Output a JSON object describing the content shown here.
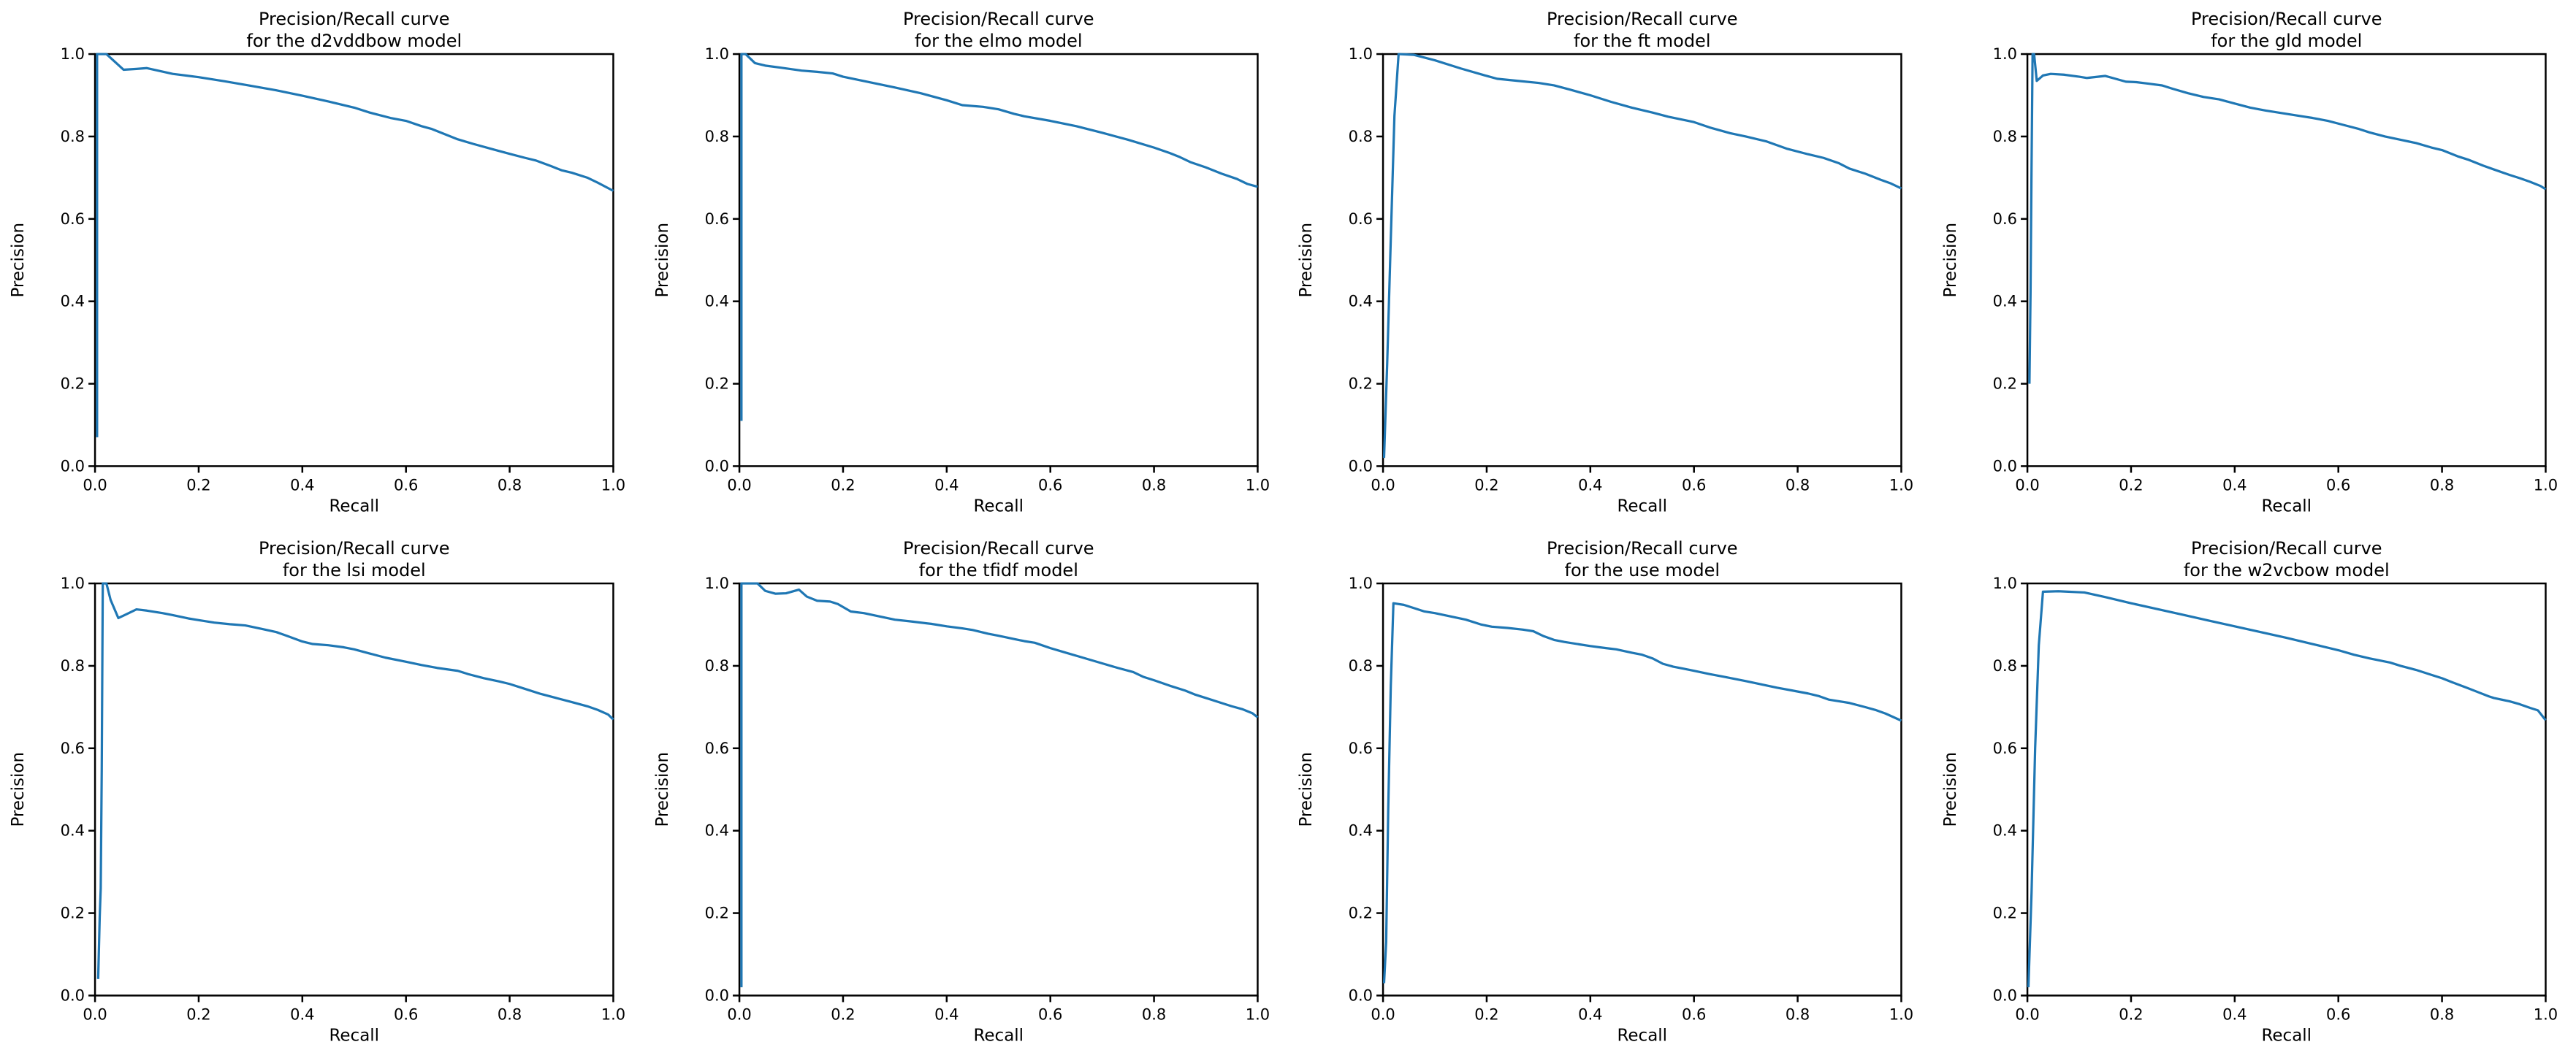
{
  "figure": {
    "background": "#ffffff",
    "line_color": "#1f77b4",
    "axis_color": "#000000",
    "nrows": 2,
    "ncols": 4
  },
  "chart_data": [
    {
      "type": "line",
      "model": "d2vddbow",
      "title_line1": "Precision/Recall curve",
      "title_line2": "for the d2vddbow model",
      "xlabel": "Recall",
      "ylabel": "Precision",
      "xlim": [
        0.0,
        1.0
      ],
      "ylim": [
        0.0,
        1.0
      ],
      "xticks": [
        0.0,
        0.2,
        0.4,
        0.6,
        0.8,
        1.0
      ],
      "yticks": [
        0.0,
        0.2,
        0.4,
        0.6,
        0.8,
        1.0
      ],
      "xtick_labels": [
        "0.0",
        "0.2",
        "0.4",
        "0.6",
        "0.8",
        "1.0"
      ],
      "ytick_labels": [
        "0.0",
        "0.2",
        "0.4",
        "0.6",
        "0.8",
        "1.0"
      ],
      "grid": false,
      "legend": "none",
      "series": [
        {
          "name": "precision_recall",
          "x": [
            0.004,
            0.004,
            0.01,
            0.022,
            0.055,
            0.08,
            0.1,
            0.15,
            0.2,
            0.25,
            0.3,
            0.35,
            0.4,
            0.45,
            0.5,
            0.53,
            0.57,
            0.6,
            0.63,
            0.65,
            0.7,
            0.73,
            0.77,
            0.8,
            0.83,
            0.85,
            0.88,
            0.9,
            0.92,
            0.95,
            0.97,
            1.0
          ],
          "y": [
            0.07,
            1.0,
            1.0,
            1.0,
            0.962,
            0.964,
            0.966,
            0.952,
            0.944,
            0.934,
            0.923,
            0.912,
            0.899,
            0.885,
            0.87,
            0.858,
            0.845,
            0.838,
            0.825,
            0.818,
            0.793,
            0.782,
            0.768,
            0.758,
            0.748,
            0.742,
            0.728,
            0.718,
            0.712,
            0.7,
            0.688,
            0.668
          ]
        }
      ]
    },
    {
      "type": "line",
      "model": "elmo",
      "title_line1": "Precision/Recall curve",
      "title_line2": "for the elmo model",
      "xlabel": "Recall",
      "ylabel": "Precision",
      "xlim": [
        0.0,
        1.0
      ],
      "ylim": [
        0.0,
        1.0
      ],
      "xticks": [
        0.0,
        0.2,
        0.4,
        0.6,
        0.8,
        1.0
      ],
      "yticks": [
        0.0,
        0.2,
        0.4,
        0.6,
        0.8,
        1.0
      ],
      "xtick_labels": [
        "0.0",
        "0.2",
        "0.4",
        "0.6",
        "0.8",
        "1.0"
      ],
      "ytick_labels": [
        "0.0",
        "0.2",
        "0.4",
        "0.6",
        "0.8",
        "1.0"
      ],
      "grid": false,
      "legend": "none",
      "series": [
        {
          "name": "precision_recall",
          "x": [
            0.004,
            0.004,
            0.012,
            0.03,
            0.05,
            0.08,
            0.12,
            0.15,
            0.18,
            0.2,
            0.25,
            0.3,
            0.35,
            0.4,
            0.43,
            0.47,
            0.5,
            0.53,
            0.55,
            0.6,
            0.65,
            0.7,
            0.75,
            0.8,
            0.83,
            0.85,
            0.87,
            0.9,
            0.93,
            0.96,
            0.98,
            1.0
          ],
          "y": [
            0.11,
            1.0,
            1.0,
            0.978,
            0.972,
            0.967,
            0.96,
            0.957,
            0.953,
            0.945,
            0.932,
            0.919,
            0.905,
            0.888,
            0.876,
            0.872,
            0.866,
            0.855,
            0.849,
            0.838,
            0.825,
            0.809,
            0.792,
            0.773,
            0.76,
            0.75,
            0.738,
            0.725,
            0.71,
            0.697,
            0.685,
            0.678
          ]
        }
      ]
    },
    {
      "type": "line",
      "model": "ft",
      "title_line1": "Precision/Recall curve",
      "title_line2": "for the ft model",
      "xlabel": "Recall",
      "ylabel": "Precision",
      "xlim": [
        0.0,
        1.0
      ],
      "ylim": [
        0.0,
        1.0
      ],
      "xticks": [
        0.0,
        0.2,
        0.4,
        0.6,
        0.8,
        1.0
      ],
      "yticks": [
        0.0,
        0.2,
        0.4,
        0.6,
        0.8,
        1.0
      ],
      "xtick_labels": [
        "0.0",
        "0.2",
        "0.4",
        "0.6",
        "0.8",
        "1.0"
      ],
      "ytick_labels": [
        "0.0",
        "0.2",
        "0.4",
        "0.6",
        "0.8",
        "1.0"
      ],
      "grid": false,
      "legend": "none",
      "series": [
        {
          "name": "precision_recall",
          "x": [
            0.002,
            0.008,
            0.015,
            0.022,
            0.03,
            0.06,
            0.1,
            0.15,
            0.2,
            0.22,
            0.26,
            0.3,
            0.33,
            0.36,
            0.4,
            0.44,
            0.48,
            0.52,
            0.55,
            0.6,
            0.63,
            0.67,
            0.7,
            0.74,
            0.78,
            0.82,
            0.85,
            0.88,
            0.9,
            0.93,
            0.96,
            0.98,
            1.0
          ],
          "y": [
            0.02,
            0.25,
            0.55,
            0.85,
            1.0,
            0.998,
            0.985,
            0.965,
            0.947,
            0.94,
            0.935,
            0.93,
            0.924,
            0.914,
            0.9,
            0.884,
            0.87,
            0.858,
            0.848,
            0.835,
            0.822,
            0.808,
            0.8,
            0.788,
            0.77,
            0.757,
            0.748,
            0.735,
            0.722,
            0.71,
            0.695,
            0.686,
            0.674
          ]
        }
      ]
    },
    {
      "type": "line",
      "model": "gld",
      "title_line1": "Precision/Recall curve",
      "title_line2": "for the gld model",
      "xlabel": "Recall",
      "ylabel": "Precision",
      "xlim": [
        0.0,
        1.0
      ],
      "ylim": [
        0.0,
        1.0
      ],
      "xticks": [
        0.0,
        0.2,
        0.4,
        0.6,
        0.8,
        1.0
      ],
      "yticks": [
        0.0,
        0.2,
        0.4,
        0.6,
        0.8,
        1.0
      ],
      "xtick_labels": [
        "0.0",
        "0.2",
        "0.4",
        "0.6",
        "0.8",
        "1.0"
      ],
      "ytick_labels": [
        "0.0",
        "0.2",
        "0.4",
        "0.6",
        "0.8",
        "1.0"
      ],
      "grid": false,
      "legend": "none",
      "series": [
        {
          "name": "precision_recall",
          "x": [
            0.004,
            0.006,
            0.008,
            0.01,
            0.013,
            0.018,
            0.03,
            0.045,
            0.07,
            0.1,
            0.115,
            0.15,
            0.17,
            0.19,
            0.21,
            0.235,
            0.26,
            0.28,
            0.31,
            0.34,
            0.37,
            0.4,
            0.43,
            0.46,
            0.5,
            0.53,
            0.55,
            0.58,
            0.61,
            0.64,
            0.66,
            0.69,
            0.72,
            0.75,
            0.78,
            0.8,
            0.83,
            0.85,
            0.88,
            0.9,
            0.93,
            0.95,
            0.97,
            0.99,
            1.0
          ],
          "y": [
            0.2,
            0.42,
            0.73,
            1.0,
            1.0,
            0.935,
            0.948,
            0.952,
            0.95,
            0.945,
            0.942,
            0.947,
            0.94,
            0.933,
            0.932,
            0.928,
            0.924,
            0.916,
            0.905,
            0.896,
            0.89,
            0.88,
            0.87,
            0.863,
            0.855,
            0.849,
            0.845,
            0.838,
            0.828,
            0.818,
            0.81,
            0.8,
            0.792,
            0.784,
            0.773,
            0.767,
            0.752,
            0.744,
            0.729,
            0.72,
            0.707,
            0.699,
            0.69,
            0.68,
            0.672
          ]
        }
      ]
    },
    {
      "type": "line",
      "model": "lsi",
      "title_line1": "Precision/Recall curve",
      "title_line2": "for the lsi model",
      "xlabel": "Recall",
      "ylabel": "Precision",
      "xlim": [
        0.0,
        1.0
      ],
      "ylim": [
        0.0,
        1.0
      ],
      "xticks": [
        0.0,
        0.2,
        0.4,
        0.6,
        0.8,
        1.0
      ],
      "yticks": [
        0.0,
        0.2,
        0.4,
        0.6,
        0.8,
        1.0
      ],
      "xtick_labels": [
        "0.0",
        "0.2",
        "0.4",
        "0.6",
        "0.8",
        "1.0"
      ],
      "ytick_labels": [
        "0.0",
        "0.2",
        "0.4",
        "0.6",
        "0.8",
        "1.0"
      ],
      "grid": false,
      "legend": "none",
      "series": [
        {
          "name": "precision_recall",
          "x": [
            0.006,
            0.009,
            0.011,
            0.013,
            0.015,
            0.022,
            0.03,
            0.045,
            0.06,
            0.08,
            0.1,
            0.13,
            0.15,
            0.18,
            0.2,
            0.23,
            0.26,
            0.29,
            0.32,
            0.35,
            0.37,
            0.4,
            0.42,
            0.45,
            0.48,
            0.5,
            0.53,
            0.56,
            0.6,
            0.63,
            0.66,
            0.7,
            0.72,
            0.75,
            0.78,
            0.8,
            0.83,
            0.86,
            0.89,
            0.92,
            0.95,
            0.97,
            0.99,
            1.0
          ],
          "y": [
            0.04,
            0.19,
            0.26,
            0.55,
            1.0,
            1.0,
            0.96,
            0.916,
            0.925,
            0.937,
            0.934,
            0.928,
            0.923,
            0.915,
            0.911,
            0.905,
            0.901,
            0.898,
            0.89,
            0.882,
            0.873,
            0.859,
            0.853,
            0.85,
            0.845,
            0.84,
            0.83,
            0.82,
            0.81,
            0.802,
            0.795,
            0.788,
            0.78,
            0.77,
            0.762,
            0.756,
            0.744,
            0.732,
            0.722,
            0.712,
            0.702,
            0.693,
            0.682,
            0.67
          ]
        }
      ]
    },
    {
      "type": "line",
      "model": "tfidf",
      "title_line1": "Precision/Recall curve",
      "title_line2": "for the tfidf model",
      "xlabel": "Recall",
      "ylabel": "Precision",
      "xlim": [
        0.0,
        1.0
      ],
      "ylim": [
        0.0,
        1.0
      ],
      "xticks": [
        0.0,
        0.2,
        0.4,
        0.6,
        0.8,
        1.0
      ],
      "yticks": [
        0.0,
        0.2,
        0.4,
        0.6,
        0.8,
        1.0
      ],
      "xtick_labels": [
        "0.0",
        "0.2",
        "0.4",
        "0.6",
        "0.8",
        "1.0"
      ],
      "ytick_labels": [
        "0.0",
        "0.2",
        "0.4",
        "0.6",
        "0.8",
        "1.0"
      ],
      "grid": false,
      "legend": "none",
      "series": [
        {
          "name": "precision_recall",
          "x": [
            0.004,
            0.004,
            0.035,
            0.05,
            0.07,
            0.09,
            0.115,
            0.13,
            0.15,
            0.175,
            0.19,
            0.215,
            0.24,
            0.27,
            0.3,
            0.33,
            0.37,
            0.4,
            0.43,
            0.45,
            0.48,
            0.5,
            0.53,
            0.55,
            0.57,
            0.6,
            0.63,
            0.66,
            0.7,
            0.73,
            0.76,
            0.78,
            0.8,
            0.83,
            0.86,
            0.88,
            0.9,
            0.93,
            0.95,
            0.97,
            0.99,
            1.0
          ],
          "y": [
            0.02,
            1.0,
            1.0,
            0.982,
            0.975,
            0.976,
            0.985,
            0.968,
            0.958,
            0.956,
            0.95,
            0.932,
            0.928,
            0.92,
            0.912,
            0.908,
            0.902,
            0.896,
            0.891,
            0.887,
            0.878,
            0.873,
            0.865,
            0.86,
            0.856,
            0.843,
            0.832,
            0.821,
            0.806,
            0.795,
            0.785,
            0.773,
            0.765,
            0.752,
            0.74,
            0.73,
            0.722,
            0.71,
            0.702,
            0.695,
            0.685,
            0.675
          ]
        }
      ]
    },
    {
      "type": "line",
      "model": "use",
      "title_line1": "Precision/Recall curve",
      "title_line2": "for the use model",
      "xlabel": "Recall",
      "ylabel": "Precision",
      "xlim": [
        0.0,
        1.0
      ],
      "ylim": [
        0.0,
        1.0
      ],
      "xticks": [
        0.0,
        0.2,
        0.4,
        0.6,
        0.8,
        1.0
      ],
      "yticks": [
        0.0,
        0.2,
        0.4,
        0.6,
        0.8,
        1.0
      ],
      "xtick_labels": [
        "0.0",
        "0.2",
        "0.4",
        "0.6",
        "0.8",
        "1.0"
      ],
      "ytick_labels": [
        "0.0",
        "0.2",
        "0.4",
        "0.6",
        "0.8",
        "1.0"
      ],
      "grid": false,
      "legend": "none",
      "series": [
        {
          "name": "precision_recall",
          "x": [
            0.002,
            0.006,
            0.01,
            0.015,
            0.02,
            0.04,
            0.06,
            0.08,
            0.1,
            0.13,
            0.16,
            0.19,
            0.21,
            0.24,
            0.27,
            0.29,
            0.31,
            0.33,
            0.35,
            0.38,
            0.4,
            0.43,
            0.45,
            0.48,
            0.5,
            0.52,
            0.54,
            0.56,
            0.58,
            0.6,
            0.63,
            0.66,
            0.7,
            0.73,
            0.76,
            0.79,
            0.82,
            0.84,
            0.86,
            0.88,
            0.9,
            0.93,
            0.95,
            0.97,
            1.0
          ],
          "y": [
            0.03,
            0.13,
            0.45,
            0.75,
            0.952,
            0.948,
            0.94,
            0.932,
            0.928,
            0.92,
            0.912,
            0.9,
            0.895,
            0.892,
            0.888,
            0.884,
            0.872,
            0.863,
            0.858,
            0.852,
            0.848,
            0.843,
            0.84,
            0.832,
            0.827,
            0.818,
            0.805,
            0.798,
            0.793,
            0.788,
            0.78,
            0.773,
            0.763,
            0.755,
            0.747,
            0.74,
            0.733,
            0.727,
            0.718,
            0.714,
            0.71,
            0.7,
            0.693,
            0.684,
            0.667
          ]
        }
      ]
    },
    {
      "type": "line",
      "model": "w2vcbow",
      "title_line1": "Precision/Recall curve",
      "title_line2": "for the w2vcbow model",
      "xlabel": "Recall",
      "ylabel": "Precision",
      "xlim": [
        0.0,
        1.0
      ],
      "ylim": [
        0.0,
        1.0
      ],
      "xticks": [
        0.0,
        0.2,
        0.4,
        0.6,
        0.8,
        1.0
      ],
      "yticks": [
        0.0,
        0.2,
        0.4,
        0.6,
        0.8,
        1.0
      ],
      "xtick_labels": [
        "0.0",
        "0.2",
        "0.4",
        "0.6",
        "0.8",
        "1.0"
      ],
      "ytick_labels": [
        "0.0",
        "0.2",
        "0.4",
        "0.6",
        "0.8",
        "1.0"
      ],
      "grid": false,
      "legend": "none",
      "series": [
        {
          "name": "precision_recall",
          "x": [
            0.002,
            0.008,
            0.015,
            0.022,
            0.03,
            0.06,
            0.11,
            0.15,
            0.2,
            0.25,
            0.3,
            0.35,
            0.4,
            0.45,
            0.5,
            0.55,
            0.6,
            0.63,
            0.66,
            0.7,
            0.72,
            0.75,
            0.78,
            0.8,
            0.82,
            0.85,
            0.87,
            0.89,
            0.9,
            0.93,
            0.95,
            0.97,
            0.985,
            1.0
          ],
          "y": [
            0.02,
            0.25,
            0.6,
            0.85,
            0.98,
            0.981,
            0.978,
            0.967,
            0.952,
            0.938,
            0.924,
            0.91,
            0.896,
            0.882,
            0.868,
            0.853,
            0.838,
            0.827,
            0.818,
            0.808,
            0.8,
            0.79,
            0.778,
            0.77,
            0.76,
            0.746,
            0.736,
            0.726,
            0.722,
            0.714,
            0.707,
            0.698,
            0.692,
            0.668
          ]
        }
      ]
    }
  ]
}
